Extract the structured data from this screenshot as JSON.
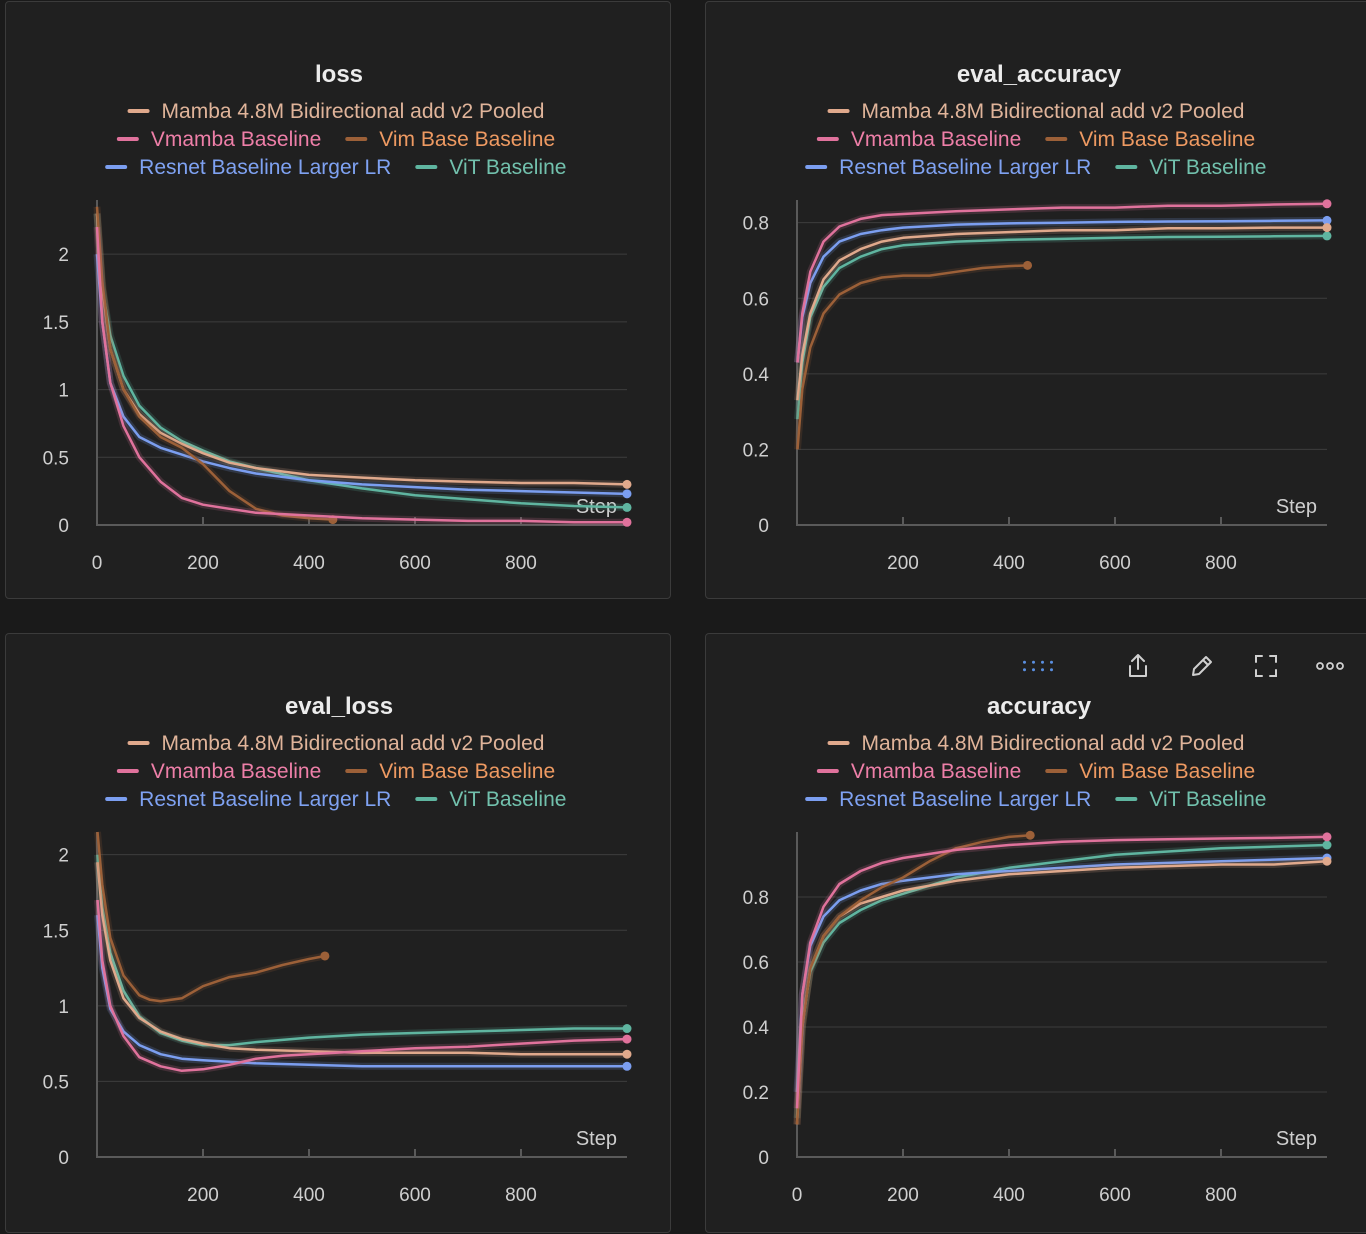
{
  "colors": {
    "mamba": "#e0a98c",
    "vmamba": "#e0729c",
    "vim": "#9c6038",
    "resnet": "#7b9ef0",
    "vit": "#5fb5a0",
    "toolbar_accent": "#5a8fe0"
  },
  "legend_text_colors": {
    "mamba": "#e0b49a",
    "vmamba": "#ee7fa8",
    "vim": "#ee9a62",
    "resnet": "#7fa2f2",
    "vit": "#72c1ad"
  },
  "toolbar": {
    "icons": [
      "drag-handle-icon",
      "share-icon",
      "edit-icon",
      "fullscreen-icon",
      "more-icon"
    ]
  },
  "chart_data": [
    {
      "type": "line",
      "title": "loss",
      "xlabel": "Step",
      "ylabel": "",
      "xlim": [
        0,
        1000
      ],
      "ylim": [
        0,
        2.4
      ],
      "xticks": [
        0,
        200,
        400,
        600,
        800
      ],
      "yticks": [
        0,
        0.5,
        1,
        1.5,
        2
      ],
      "ytick_labels": [
        "0",
        "0.5",
        "1",
        "1.5",
        "2"
      ],
      "legend_placement": "top",
      "series": [
        {
          "name": "Mamba 4.8M Bidirectional add v2 Pooled",
          "key": "mamba",
          "x": [
            0,
            10,
            25,
            50,
            80,
            120,
            160,
            200,
            250,
            300,
            400,
            500,
            600,
            700,
            800,
            900,
            1000
          ],
          "y": [
            2.3,
            1.75,
            1.3,
            1.0,
            0.82,
            0.68,
            0.6,
            0.53,
            0.46,
            0.42,
            0.37,
            0.35,
            0.33,
            0.32,
            0.31,
            0.31,
            0.3
          ]
        },
        {
          "name": "Vmamba Baseline",
          "key": "vmamba",
          "x": [
            0,
            10,
            25,
            50,
            80,
            120,
            160,
            200,
            250,
            300,
            400,
            500,
            600,
            700,
            800,
            900,
            1000
          ],
          "y": [
            2.2,
            1.5,
            1.05,
            0.73,
            0.5,
            0.32,
            0.2,
            0.15,
            0.12,
            0.09,
            0.07,
            0.05,
            0.04,
            0.03,
            0.03,
            0.02,
            0.02
          ]
        },
        {
          "name": "Vim Base Baseline",
          "key": "vim",
          "x": [
            0,
            10,
            25,
            50,
            80,
            120,
            160,
            200,
            250,
            300,
            350,
            400,
            445
          ],
          "y": [
            2.35,
            1.8,
            1.3,
            1.0,
            0.8,
            0.65,
            0.57,
            0.45,
            0.25,
            0.12,
            0.07,
            0.05,
            0.04
          ]
        },
        {
          "name": "Resnet Baseline Larger LR",
          "key": "resnet",
          "x": [
            0,
            10,
            25,
            50,
            80,
            120,
            160,
            200,
            250,
            300,
            400,
            500,
            600,
            700,
            800,
            900,
            1000
          ],
          "y": [
            2.0,
            1.5,
            1.05,
            0.8,
            0.65,
            0.57,
            0.52,
            0.47,
            0.42,
            0.38,
            0.33,
            0.3,
            0.28,
            0.26,
            0.25,
            0.24,
            0.23
          ]
        },
        {
          "name": "ViT Baseline",
          "key": "vit",
          "x": [
            0,
            10,
            25,
            50,
            80,
            120,
            160,
            200,
            250,
            300,
            400,
            500,
            600,
            700,
            800,
            900,
            1000
          ],
          "y": [
            2.3,
            1.75,
            1.4,
            1.1,
            0.88,
            0.72,
            0.62,
            0.55,
            0.47,
            0.42,
            0.33,
            0.27,
            0.22,
            0.19,
            0.16,
            0.14,
            0.13
          ]
        }
      ]
    },
    {
      "type": "line",
      "title": "eval_accuracy",
      "xlabel": "Step",
      "ylabel": "",
      "xlim": [
        0,
        1000
      ],
      "ylim": [
        0,
        0.86
      ],
      "xticks": [
        200,
        400,
        600,
        800
      ],
      "yticks": [
        0,
        0.2,
        0.4,
        0.6,
        0.8
      ],
      "ytick_labels": [
        "0",
        "0.2",
        "0.4",
        "0.6",
        "0.8"
      ],
      "legend_placement": "top",
      "series": [
        {
          "name": "Mamba 4.8M Bidirectional add v2 Pooled",
          "key": "mamba",
          "x": [
            1,
            10,
            25,
            50,
            80,
            120,
            160,
            200,
            300,
            400,
            500,
            600,
            700,
            800,
            900,
            1000
          ],
          "y": [
            0.33,
            0.45,
            0.56,
            0.65,
            0.7,
            0.73,
            0.75,
            0.76,
            0.77,
            0.775,
            0.78,
            0.78,
            0.785,
            0.785,
            0.787,
            0.787
          ]
        },
        {
          "name": "Vmamba Baseline",
          "key": "vmamba",
          "x": [
            1,
            10,
            25,
            50,
            80,
            120,
            160,
            200,
            300,
            400,
            500,
            600,
            700,
            800,
            900,
            1000
          ],
          "y": [
            0.43,
            0.56,
            0.67,
            0.75,
            0.79,
            0.81,
            0.82,
            0.823,
            0.83,
            0.835,
            0.84,
            0.84,
            0.845,
            0.845,
            0.848,
            0.85
          ]
        },
        {
          "name": "Vim Base Baseline",
          "key": "vim",
          "x": [
            1,
            10,
            25,
            50,
            80,
            120,
            160,
            200,
            250,
            300,
            350,
            400,
            435
          ],
          "y": [
            0.2,
            0.36,
            0.47,
            0.56,
            0.61,
            0.64,
            0.655,
            0.66,
            0.66,
            0.67,
            0.68,
            0.685,
            0.687
          ]
        },
        {
          "name": "Resnet Baseline Larger LR",
          "key": "resnet",
          "x": [
            1,
            10,
            25,
            50,
            80,
            120,
            160,
            200,
            300,
            400,
            500,
            600,
            700,
            800,
            900,
            1000
          ],
          "y": [
            0.43,
            0.55,
            0.64,
            0.71,
            0.75,
            0.77,
            0.78,
            0.787,
            0.795,
            0.798,
            0.8,
            0.802,
            0.803,
            0.804,
            0.805,
            0.806
          ]
        },
        {
          "name": "ViT Baseline",
          "key": "vit",
          "x": [
            1,
            10,
            25,
            50,
            80,
            120,
            160,
            200,
            300,
            400,
            500,
            600,
            700,
            800,
            900,
            1000
          ],
          "y": [
            0.28,
            0.43,
            0.55,
            0.63,
            0.68,
            0.71,
            0.73,
            0.74,
            0.75,
            0.755,
            0.757,
            0.76,
            0.762,
            0.763,
            0.764,
            0.765
          ]
        }
      ]
    },
    {
      "type": "line",
      "title": "eval_loss",
      "xlabel": "Step",
      "ylabel": "",
      "xlim": [
        0,
        1000
      ],
      "ylim": [
        0,
        2.15
      ],
      "xticks": [
        200,
        400,
        600,
        800
      ],
      "yticks": [
        0,
        0.5,
        1,
        1.5,
        2
      ],
      "ytick_labels": [
        "0",
        "0.5",
        "1",
        "1.5",
        "2"
      ],
      "legend_placement": "top",
      "series": [
        {
          "name": "Mamba 4.8M Bidirectional add v2 Pooled",
          "key": "mamba",
          "x": [
            1,
            10,
            25,
            50,
            80,
            120,
            160,
            200,
            250,
            300,
            400,
            500,
            600,
            700,
            800,
            900,
            1000
          ],
          "y": [
            1.95,
            1.6,
            1.3,
            1.05,
            0.92,
            0.83,
            0.78,
            0.75,
            0.72,
            0.71,
            0.7,
            0.69,
            0.69,
            0.69,
            0.68,
            0.68,
            0.68
          ]
        },
        {
          "name": "Vmamba Baseline",
          "key": "vmamba",
          "x": [
            1,
            10,
            25,
            50,
            80,
            120,
            160,
            200,
            250,
            300,
            350,
            400,
            500,
            600,
            700,
            800,
            900,
            1000
          ],
          "y": [
            1.7,
            1.3,
            1.0,
            0.8,
            0.66,
            0.6,
            0.57,
            0.58,
            0.61,
            0.65,
            0.67,
            0.68,
            0.7,
            0.72,
            0.73,
            0.75,
            0.77,
            0.78
          ]
        },
        {
          "name": "Vim Base Baseline",
          "key": "vim",
          "x": [
            1,
            10,
            25,
            50,
            80,
            100,
            120,
            160,
            200,
            250,
            300,
            350,
            400,
            430
          ],
          "y": [
            2.15,
            1.8,
            1.45,
            1.2,
            1.07,
            1.04,
            1.03,
            1.05,
            1.13,
            1.19,
            1.22,
            1.27,
            1.31,
            1.33
          ]
        },
        {
          "name": "Resnet Baseline Larger LR",
          "key": "resnet",
          "x": [
            1,
            10,
            25,
            50,
            80,
            120,
            160,
            200,
            300,
            400,
            500,
            600,
            700,
            800,
            900,
            1000
          ],
          "y": [
            1.6,
            1.25,
            0.98,
            0.83,
            0.74,
            0.68,
            0.65,
            0.64,
            0.62,
            0.61,
            0.6,
            0.6,
            0.6,
            0.6,
            0.6,
            0.6
          ]
        },
        {
          "name": "ViT Baseline",
          "key": "vit",
          "x": [
            1,
            10,
            25,
            50,
            80,
            120,
            160,
            200,
            250,
            300,
            400,
            500,
            600,
            700,
            800,
            900,
            1000
          ],
          "y": [
            2.0,
            1.65,
            1.35,
            1.1,
            0.93,
            0.82,
            0.77,
            0.74,
            0.74,
            0.76,
            0.79,
            0.81,
            0.82,
            0.83,
            0.84,
            0.85,
            0.85
          ]
        }
      ]
    },
    {
      "type": "line",
      "title": "accuracy",
      "xlabel": "Step",
      "ylabel": "",
      "xlim": [
        0,
        1000
      ],
      "ylim": [
        0,
        1.0
      ],
      "xticks": [
        0,
        200,
        400,
        600,
        800
      ],
      "yticks": [
        0,
        0.2,
        0.4,
        0.6,
        0.8
      ],
      "ytick_labels": [
        "0",
        "0.2",
        "0.4",
        "0.6",
        "0.8"
      ],
      "legend_placement": "top",
      "series": [
        {
          "name": "Mamba 4.8M Bidirectional add v2 Pooled",
          "key": "mamba",
          "x": [
            0,
            10,
            25,
            50,
            80,
            120,
            160,
            200,
            300,
            400,
            500,
            600,
            700,
            800,
            900,
            1000
          ],
          "y": [
            0.1,
            0.4,
            0.58,
            0.68,
            0.74,
            0.78,
            0.8,
            0.82,
            0.85,
            0.87,
            0.88,
            0.89,
            0.895,
            0.9,
            0.9,
            0.91
          ]
        },
        {
          "name": "Vmamba Baseline",
          "key": "vmamba",
          "x": [
            0,
            10,
            25,
            50,
            80,
            120,
            160,
            200,
            300,
            400,
            500,
            600,
            700,
            800,
            900,
            1000
          ],
          "y": [
            0.15,
            0.5,
            0.66,
            0.77,
            0.84,
            0.88,
            0.905,
            0.92,
            0.945,
            0.96,
            0.97,
            0.975,
            0.978,
            0.98,
            0.982,
            0.985
          ]
        },
        {
          "name": "Vim Base Baseline",
          "key": "vim",
          "x": [
            0,
            10,
            25,
            50,
            80,
            120,
            160,
            200,
            250,
            300,
            350,
            400,
            440
          ],
          "y": [
            0.1,
            0.4,
            0.58,
            0.68,
            0.74,
            0.79,
            0.83,
            0.86,
            0.91,
            0.95,
            0.97,
            0.985,
            0.99
          ]
        },
        {
          "name": "Resnet Baseline Larger LR",
          "key": "resnet",
          "x": [
            0,
            10,
            25,
            50,
            80,
            120,
            160,
            200,
            300,
            400,
            500,
            600,
            700,
            800,
            900,
            1000
          ],
          "y": [
            0.2,
            0.5,
            0.65,
            0.74,
            0.79,
            0.82,
            0.84,
            0.85,
            0.87,
            0.88,
            0.89,
            0.9,
            0.905,
            0.91,
            0.915,
            0.92
          ]
        },
        {
          "name": "ViT Baseline",
          "key": "vit",
          "x": [
            0,
            10,
            25,
            50,
            80,
            120,
            160,
            200,
            300,
            400,
            500,
            600,
            700,
            800,
            900,
            1000
          ],
          "y": [
            0.12,
            0.42,
            0.57,
            0.66,
            0.72,
            0.76,
            0.79,
            0.81,
            0.86,
            0.89,
            0.91,
            0.93,
            0.94,
            0.95,
            0.955,
            0.96
          ]
        }
      ]
    }
  ]
}
